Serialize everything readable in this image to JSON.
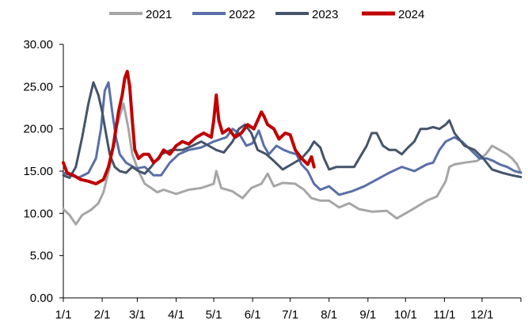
{
  "chart_data": {
    "type": "line",
    "title": "",
    "xlabel": "",
    "ylabel": "",
    "ylim": [
      0,
      30
    ],
    "ytick_labels": [
      "0.00",
      "5.00",
      "10.00",
      "15.00",
      "20.00",
      "25.00",
      "30.00"
    ],
    "ytick_values": [
      0,
      5,
      10,
      15,
      20,
      25,
      30
    ],
    "xlim_day": [
      0,
      365
    ],
    "xtick_labels": [
      "1/1",
      "2/1",
      "3/1",
      "4/1",
      "5/1",
      "6/1",
      "7/1",
      "8/1",
      "9/1",
      "10/1",
      "11/1",
      "12/1"
    ],
    "xtick_days": [
      0,
      31,
      59,
      90,
      120,
      151,
      181,
      212,
      243,
      273,
      304,
      334
    ],
    "legend_position": "top-center",
    "grid": false,
    "series": [
      {
        "name": "2021",
        "color": "#a6a6a6",
        "points": [
          [
            0,
            10.5
          ],
          [
            5,
            9.8
          ],
          [
            10,
            8.7
          ],
          [
            15,
            9.8
          ],
          [
            22,
            10.4
          ],
          [
            28,
            11.2
          ],
          [
            32,
            12.5
          ],
          [
            37,
            15.5
          ],
          [
            41,
            19.5
          ],
          [
            45,
            21.5
          ],
          [
            48,
            23
          ],
          [
            52,
            20
          ],
          [
            55,
            17
          ],
          [
            60,
            15
          ],
          [
            65,
            13.5
          ],
          [
            70,
            13
          ],
          [
            75,
            12.5
          ],
          [
            80,
            12.8
          ],
          [
            90,
            12.3
          ],
          [
            100,
            12.8
          ],
          [
            110,
            13
          ],
          [
            120,
            13.5
          ],
          [
            122,
            15
          ],
          [
            126,
            13
          ],
          [
            135,
            12.6
          ],
          [
            143,
            11.8
          ],
          [
            150,
            13
          ],
          [
            158,
            13.5
          ],
          [
            163,
            14.7
          ],
          [
            168,
            13.2
          ],
          [
            175,
            13.6
          ],
          [
            185,
            13.5
          ],
          [
            192,
            12.8
          ],
          [
            198,
            11.8
          ],
          [
            205,
            11.5
          ],
          [
            212,
            11.5
          ],
          [
            220,
            10.7
          ],
          [
            228,
            11.2
          ],
          [
            236,
            10.5
          ],
          [
            246,
            10.2
          ],
          [
            258,
            10.3
          ],
          [
            266,
            9.4
          ],
          [
            273,
            10
          ],
          [
            280,
            10.6
          ],
          [
            290,
            11.5
          ],
          [
            298,
            12
          ],
          [
            305,
            13.8
          ],
          [
            308,
            15.5
          ],
          [
            312,
            15.8
          ],
          [
            320,
            16
          ],
          [
            330,
            16.2
          ],
          [
            337,
            17
          ],
          [
            342,
            18
          ],
          [
            348,
            17.5
          ],
          [
            354,
            17
          ],
          [
            358,
            16.5
          ],
          [
            362,
            15.8
          ],
          [
            365,
            14.8
          ]
        ]
      },
      {
        "name": "2022",
        "color": "#5a6fa8",
        "points": [
          [
            0,
            14.8
          ],
          [
            6,
            14.5
          ],
          [
            12,
            14.2
          ],
          [
            20,
            14.8
          ],
          [
            26,
            16.5
          ],
          [
            30,
            20
          ],
          [
            33,
            24.5
          ],
          [
            36,
            25.5
          ],
          [
            39,
            22
          ],
          [
            42,
            19
          ],
          [
            45,
            17
          ],
          [
            50,
            16
          ],
          [
            58,
            15.3
          ],
          [
            65,
            15.5
          ],
          [
            72,
            14.5
          ],
          [
            78,
            14.5
          ],
          [
            85,
            16
          ],
          [
            92,
            17
          ],
          [
            100,
            17.5
          ],
          [
            110,
            17.8
          ],
          [
            120,
            18.5
          ],
          [
            130,
            19
          ],
          [
            135,
            20
          ],
          [
            140,
            19.5
          ],
          [
            146,
            18
          ],
          [
            151,
            18.3
          ],
          [
            156,
            19.8
          ],
          [
            160,
            18
          ],
          [
            164,
            17
          ],
          [
            170,
            18
          ],
          [
            176,
            17.5
          ],
          [
            181,
            17.2
          ],
          [
            186,
            17
          ],
          [
            190,
            15.8
          ],
          [
            195,
            15
          ],
          [
            200,
            13.5
          ],
          [
            205,
            12.8
          ],
          [
            212,
            13.2
          ],
          [
            220,
            12.2
          ],
          [
            230,
            12.6
          ],
          [
            240,
            13.2
          ],
          [
            250,
            14
          ],
          [
            260,
            14.8
          ],
          [
            270,
            15.5
          ],
          [
            280,
            15
          ],
          [
            290,
            15.8
          ],
          [
            295,
            16
          ],
          [
            300,
            17.5
          ],
          [
            305,
            18.5
          ],
          [
            312,
            19
          ],
          [
            318,
            18.5
          ],
          [
            325,
            17.5
          ],
          [
            332,
            16.5
          ],
          [
            338,
            16.5
          ],
          [
            343,
            16.2
          ],
          [
            348,
            15.8
          ],
          [
            354,
            15.5
          ],
          [
            360,
            15
          ],
          [
            365,
            14.8
          ]
        ]
      },
      {
        "name": "2023",
        "color": "#44546a",
        "points": [
          [
            0,
            14.5
          ],
          [
            5,
            14.2
          ],
          [
            10,
            15.5
          ],
          [
            15,
            19
          ],
          [
            20,
            23
          ],
          [
            24,
            25.5
          ],
          [
            28,
            24
          ],
          [
            31,
            22
          ],
          [
            34,
            19.5
          ],
          [
            37,
            17
          ],
          [
            41,
            15.5
          ],
          [
            45,
            15
          ],
          [
            50,
            14.8
          ],
          [
            55,
            15.5
          ],
          [
            60,
            15
          ],
          [
            65,
            14.7
          ],
          [
            70,
            15.5
          ],
          [
            78,
            17
          ],
          [
            86,
            17.5
          ],
          [
            95,
            17.5
          ],
          [
            103,
            18
          ],
          [
            110,
            18.5
          ],
          [
            116,
            18
          ],
          [
            122,
            17.5
          ],
          [
            128,
            17.2
          ],
          [
            135,
            18.5
          ],
          [
            140,
            20
          ],
          [
            145,
            20.5
          ],
          [
            150,
            19.5
          ],
          [
            155,
            17.5
          ],
          [
            162,
            17
          ],
          [
            168,
            16.2
          ],
          [
            175,
            15.2
          ],
          [
            182,
            15.8
          ],
          [
            190,
            16.5
          ],
          [
            196,
            17.5
          ],
          [
            200,
            18.5
          ],
          [
            205,
            17.8
          ],
          [
            208,
            16.5
          ],
          [
            212,
            15.2
          ],
          [
            218,
            15.5
          ],
          [
            225,
            15.5
          ],
          [
            232,
            15.5
          ],
          [
            238,
            17
          ],
          [
            242,
            18
          ],
          [
            246,
            19.5
          ],
          [
            250,
            19.5
          ],
          [
            255,
            18
          ],
          [
            260,
            17.5
          ],
          [
            265,
            17.5
          ],
          [
            270,
            17
          ],
          [
            275,
            17.8
          ],
          [
            280,
            18.5
          ],
          [
            285,
            20
          ],
          [
            290,
            20
          ],
          [
            295,
            20.2
          ],
          [
            300,
            20
          ],
          [
            305,
            20.5
          ],
          [
            308,
            21
          ],
          [
            312,
            19.5
          ],
          [
            320,
            18
          ],
          [
            328,
            17.5
          ],
          [
            335,
            16.5
          ],
          [
            342,
            15.2
          ],
          [
            350,
            14.8
          ],
          [
            358,
            14.5
          ],
          [
            365,
            14.3
          ]
        ]
      },
      {
        "name": "2024",
        "color": "#c00000",
        "points": [
          [
            0,
            16
          ],
          [
            3,
            14.8
          ],
          [
            8,
            14.5
          ],
          [
            14,
            14
          ],
          [
            20,
            13.8
          ],
          [
            26,
            13.5
          ],
          [
            32,
            14
          ],
          [
            36,
            15.5
          ],
          [
            40,
            18
          ],
          [
            44,
            22
          ],
          [
            47,
            24
          ],
          [
            49,
            26
          ],
          [
            51,
            26.8
          ],
          [
            53,
            25
          ],
          [
            55,
            21
          ],
          [
            57,
            17.5
          ],
          [
            60,
            16.5
          ],
          [
            64,
            17
          ],
          [
            68,
            17
          ],
          [
            72,
            16
          ],
          [
            76,
            16.5
          ],
          [
            80,
            17.5
          ],
          [
            85,
            17
          ],
          [
            90,
            18
          ],
          [
            95,
            18.5
          ],
          [
            100,
            18.2
          ],
          [
            106,
            19
          ],
          [
            112,
            19.5
          ],
          [
            118,
            19
          ],
          [
            120,
            21
          ],
          [
            122,
            24
          ],
          [
            124,
            21
          ],
          [
            127,
            19.5
          ],
          [
            132,
            20
          ],
          [
            137,
            19
          ],
          [
            142,
            19.5
          ],
          [
            147,
            20.5
          ],
          [
            152,
            20
          ],
          [
            155,
            21
          ],
          [
            158,
            22
          ],
          [
            160,
            21.5
          ],
          [
            163,
            20.5
          ],
          [
            168,
            20
          ],
          [
            172,
            18.8
          ],
          [
            177,
            19.5
          ],
          [
            181,
            19.3
          ],
          [
            185,
            17.5
          ],
          [
            190,
            16.5
          ],
          [
            195,
            15.8
          ],
          [
            198,
            16.7
          ],
          [
            200,
            15.5
          ]
        ]
      }
    ]
  }
}
